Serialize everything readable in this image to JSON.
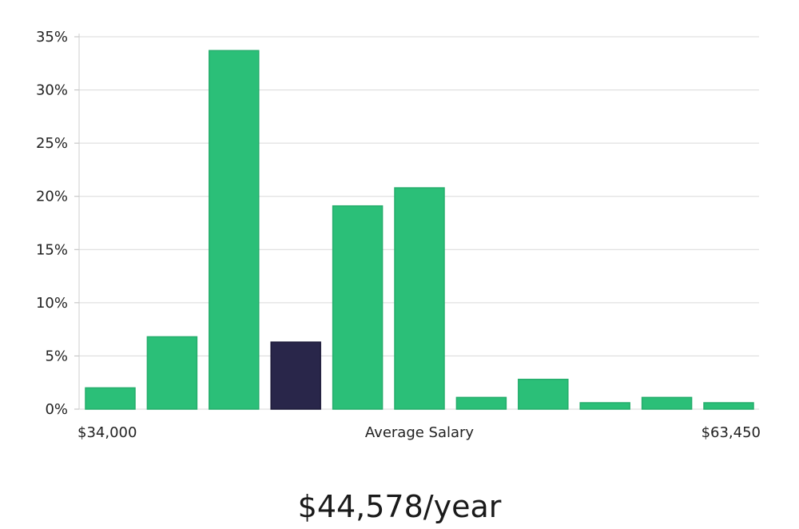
{
  "chart_data": {
    "type": "bar",
    "categories": [
      "1",
      "2",
      "3",
      "4",
      "5",
      "6",
      "7",
      "8",
      "9",
      "10",
      "11"
    ],
    "values": [
      2.0,
      6.8,
      33.7,
      6.3,
      19.1,
      20.8,
      1.1,
      2.8,
      0.6,
      1.1,
      0.6
    ],
    "highlight_index": 3,
    "ylim": [
      0,
      35
    ],
    "y_ticks": [
      0,
      5,
      10,
      15,
      20,
      25,
      30,
      35
    ],
    "y_tick_labels": [
      "0%",
      "5%",
      "10%",
      "15%",
      "20%",
      "25%",
      "30%",
      "35%"
    ],
    "x_labels": {
      "left": "$34,000",
      "center": "Average Salary",
      "right": "$63,450"
    },
    "grid": true,
    "colors": {
      "bar": "#2bbf78",
      "bar_edge": "#25ad6c",
      "highlight": "#29264a",
      "grid": "#d9d9d9"
    }
  },
  "summary": {
    "average_salary": "$44,578/year"
  }
}
